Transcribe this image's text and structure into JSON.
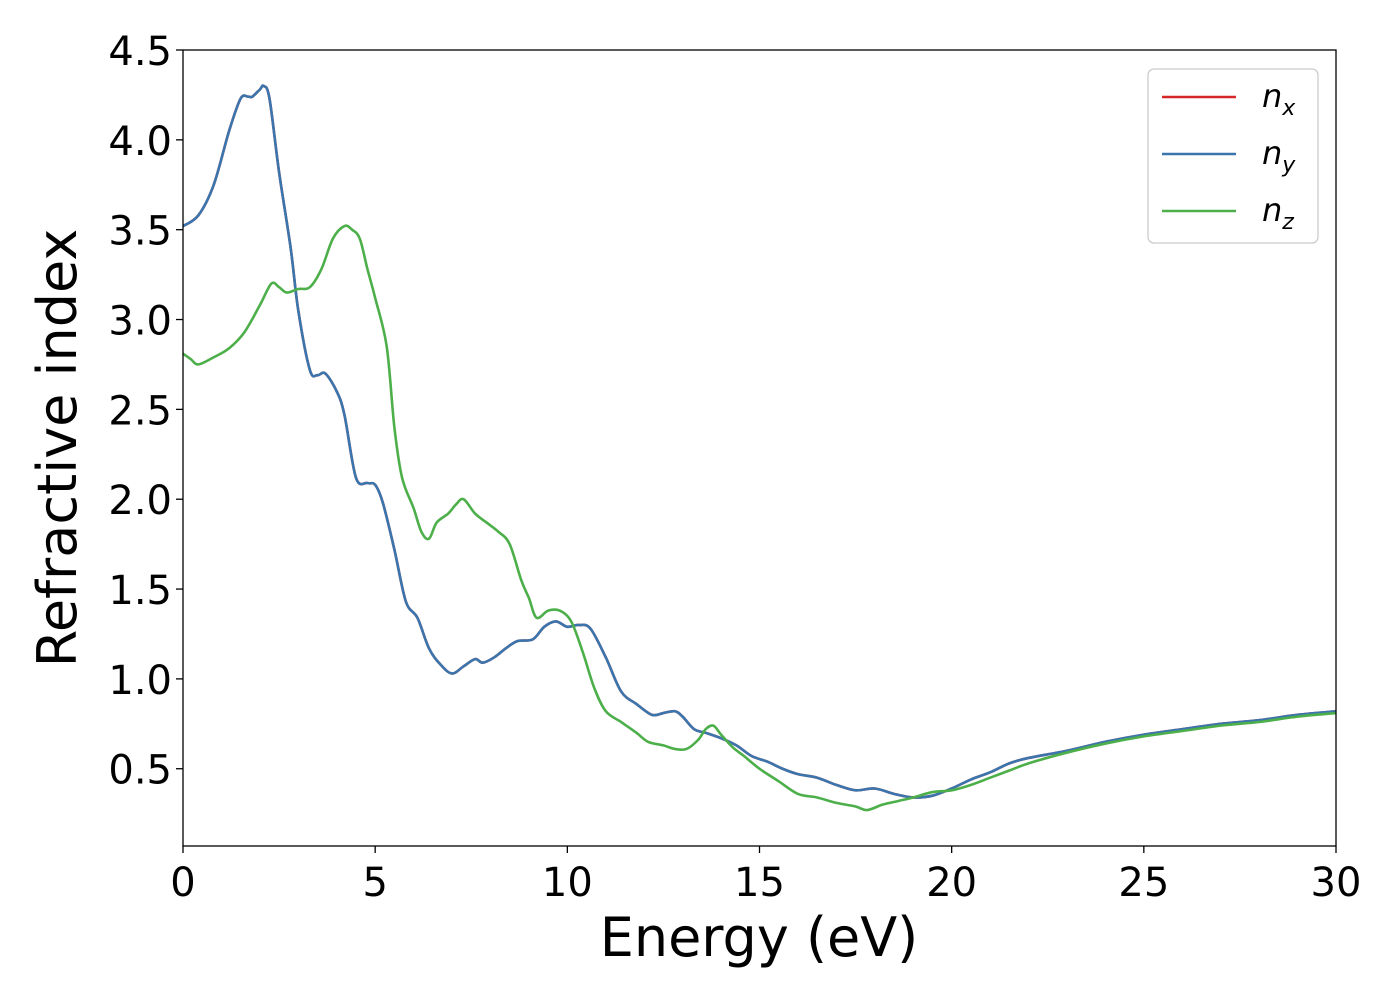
{
  "chart_data": {
    "type": "line",
    "xlabel": "Energy (eV)",
    "ylabel": "Refractive index",
    "xlim": [
      0,
      30
    ],
    "ylim": [
      0.07,
      4.5
    ],
    "xticks": [
      "0",
      "5",
      "10",
      "15",
      "20",
      "25",
      "30"
    ],
    "yticks": [
      "0.5",
      "1.0",
      "1.5",
      "2.0",
      "2.5",
      "3.0",
      "3.5",
      "4.0",
      "4.5"
    ],
    "grid": false,
    "legend_position": "top-right",
    "series": [
      {
        "name": "n",
        "subscript": "x",
        "color": "#d62728",
        "x": [
          0,
          0.4,
          0.8,
          1.2,
          1.5,
          1.7,
          1.8,
          2.0,
          2.1,
          2.25,
          2.5,
          2.8,
          3.0,
          3.3,
          3.5,
          3.7,
          4.0,
          4.2,
          4.5,
          4.8,
          5.0,
          5.2,
          5.5,
          5.8,
          6.1,
          6.4,
          6.7,
          7.0,
          7.3,
          7.6,
          7.8,
          8.1,
          8.4,
          8.7,
          9.1,
          9.4,
          9.7,
          10.0,
          10.3,
          10.6,
          11.0,
          11.4,
          11.8,
          12.2,
          12.5,
          12.8,
          13.0,
          13.3,
          13.6,
          14.0,
          14.4,
          14.8,
          15.2,
          15.6,
          16.0,
          16.5,
          17.0,
          17.5,
          18.0,
          18.5,
          19.0,
          19.5,
          20.0,
          20.5,
          21.0,
          21.5,
          22.0,
          23.0,
          24.0,
          25.0,
          26.0,
          27.0,
          28.0,
          29.0,
          30.0
        ],
        "values": [
          3.52,
          3.58,
          3.75,
          4.05,
          4.23,
          4.24,
          4.24,
          4.28,
          4.3,
          4.23,
          3.82,
          3.4,
          3.05,
          2.72,
          2.69,
          2.7,
          2.6,
          2.47,
          2.12,
          2.09,
          2.08,
          1.98,
          1.72,
          1.43,
          1.34,
          1.17,
          1.08,
          1.03,
          1.07,
          1.11,
          1.09,
          1.12,
          1.17,
          1.21,
          1.22,
          1.29,
          1.32,
          1.29,
          1.3,
          1.28,
          1.12,
          0.93,
          0.86,
          0.8,
          0.81,
          0.82,
          0.79,
          0.72,
          0.7,
          0.67,
          0.63,
          0.57,
          0.54,
          0.5,
          0.47,
          0.45,
          0.41,
          0.38,
          0.39,
          0.36,
          0.34,
          0.35,
          0.39,
          0.44,
          0.48,
          0.53,
          0.56,
          0.6,
          0.65,
          0.69,
          0.72,
          0.75,
          0.77,
          0.8,
          0.82
        ]
      },
      {
        "name": "n",
        "subscript": "y",
        "color": "#3a76ad",
        "x": [
          0,
          0.4,
          0.8,
          1.2,
          1.5,
          1.7,
          1.8,
          2.0,
          2.1,
          2.25,
          2.5,
          2.8,
          3.0,
          3.3,
          3.5,
          3.7,
          4.0,
          4.2,
          4.5,
          4.8,
          5.0,
          5.2,
          5.5,
          5.8,
          6.1,
          6.4,
          6.7,
          7.0,
          7.3,
          7.6,
          7.8,
          8.1,
          8.4,
          8.7,
          9.1,
          9.4,
          9.7,
          10.0,
          10.3,
          10.6,
          11.0,
          11.4,
          11.8,
          12.2,
          12.5,
          12.8,
          13.0,
          13.3,
          13.6,
          14.0,
          14.4,
          14.8,
          15.2,
          15.6,
          16.0,
          16.5,
          17.0,
          17.5,
          18.0,
          18.5,
          19.0,
          19.5,
          20.0,
          20.5,
          21.0,
          21.5,
          22.0,
          23.0,
          24.0,
          25.0,
          26.0,
          27.0,
          28.0,
          29.0,
          30.0
        ],
        "values": [
          3.52,
          3.58,
          3.75,
          4.05,
          4.23,
          4.24,
          4.24,
          4.28,
          4.3,
          4.23,
          3.82,
          3.4,
          3.05,
          2.72,
          2.69,
          2.7,
          2.6,
          2.47,
          2.12,
          2.09,
          2.08,
          1.98,
          1.72,
          1.43,
          1.34,
          1.17,
          1.08,
          1.03,
          1.07,
          1.11,
          1.09,
          1.12,
          1.17,
          1.21,
          1.22,
          1.29,
          1.32,
          1.29,
          1.3,
          1.28,
          1.12,
          0.93,
          0.86,
          0.8,
          0.81,
          0.82,
          0.79,
          0.72,
          0.7,
          0.67,
          0.63,
          0.57,
          0.54,
          0.5,
          0.47,
          0.45,
          0.41,
          0.38,
          0.39,
          0.36,
          0.34,
          0.35,
          0.39,
          0.44,
          0.48,
          0.53,
          0.56,
          0.6,
          0.65,
          0.69,
          0.72,
          0.75,
          0.77,
          0.8,
          0.82
        ]
      },
      {
        "name": "n",
        "subscript": "z",
        "color": "#4daf4a",
        "x": [
          0,
          0.2,
          0.4,
          0.8,
          1.2,
          1.6,
          2.0,
          2.3,
          2.5,
          2.7,
          3.0,
          3.3,
          3.6,
          3.9,
          4.2,
          4.4,
          4.6,
          4.8,
          5.0,
          5.3,
          5.5,
          5.7,
          6.0,
          6.2,
          6.4,
          6.6,
          6.9,
          7.1,
          7.3,
          7.6,
          7.9,
          8.2,
          8.5,
          8.8,
          9.0,
          9.2,
          9.5,
          9.8,
          10.1,
          10.4,
          10.7,
          11.0,
          11.4,
          11.8,
          12.1,
          12.5,
          12.8,
          13.1,
          13.4,
          13.6,
          13.8,
          14.0,
          14.3,
          14.6,
          15.0,
          15.5,
          16.0,
          16.5,
          17.0,
          17.5,
          17.8,
          18.2,
          18.6,
          19.0,
          19.5,
          20.0,
          20.5,
          21.0,
          21.5,
          22.0,
          23.0,
          24.0,
          25.0,
          26.0,
          27.0,
          28.0,
          29.0,
          30.0
        ],
        "values": [
          2.81,
          2.78,
          2.75,
          2.79,
          2.84,
          2.93,
          3.08,
          3.2,
          3.18,
          3.15,
          3.17,
          3.18,
          3.28,
          3.45,
          3.52,
          3.5,
          3.45,
          3.28,
          3.12,
          2.85,
          2.4,
          2.12,
          1.95,
          1.82,
          1.78,
          1.87,
          1.92,
          1.97,
          2.0,
          1.92,
          1.87,
          1.82,
          1.75,
          1.55,
          1.45,
          1.34,
          1.38,
          1.38,
          1.32,
          1.15,
          0.95,
          0.82,
          0.76,
          0.7,
          0.65,
          0.63,
          0.61,
          0.61,
          0.66,
          0.72,
          0.74,
          0.69,
          0.62,
          0.57,
          0.5,
          0.43,
          0.36,
          0.34,
          0.31,
          0.29,
          0.27,
          0.3,
          0.32,
          0.34,
          0.37,
          0.38,
          0.41,
          0.45,
          0.49,
          0.53,
          0.59,
          0.64,
          0.68,
          0.71,
          0.74,
          0.76,
          0.79,
          0.81
        ]
      }
    ]
  }
}
